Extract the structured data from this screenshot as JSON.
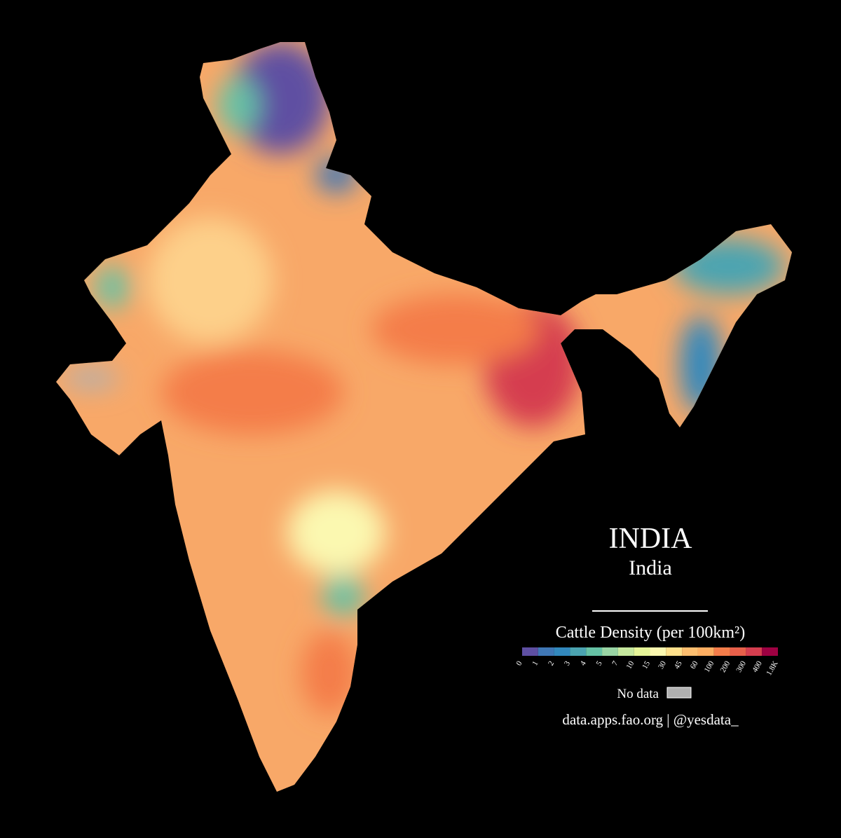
{
  "header": {
    "title": "INDIA",
    "subtitle": "India"
  },
  "legend": {
    "title": "Cattle Density (per 100km²)",
    "colors": [
      "#5e4fa2",
      "#3f77b5",
      "#3288bd",
      "#4ba4b1",
      "#66c2a5",
      "#99d5a4",
      "#c6e89e",
      "#e6f598",
      "#fbf8b0",
      "#fee08b",
      "#fdbe6f",
      "#fdae61",
      "#f47d4a",
      "#e8604a",
      "#d53e4f",
      "#9e0142"
    ],
    "ticks": [
      0,
      1,
      2,
      3,
      4,
      5,
      7,
      10,
      15,
      30,
      45,
      60,
      100,
      200,
      300,
      400,
      {
        "value": 1800,
        "label": "1.8K"
      }
    ],
    "no_data_label": "No data",
    "no_data_color": "#b0b0b0"
  },
  "source": "data.apps.fao.org | @yesdata_"
}
